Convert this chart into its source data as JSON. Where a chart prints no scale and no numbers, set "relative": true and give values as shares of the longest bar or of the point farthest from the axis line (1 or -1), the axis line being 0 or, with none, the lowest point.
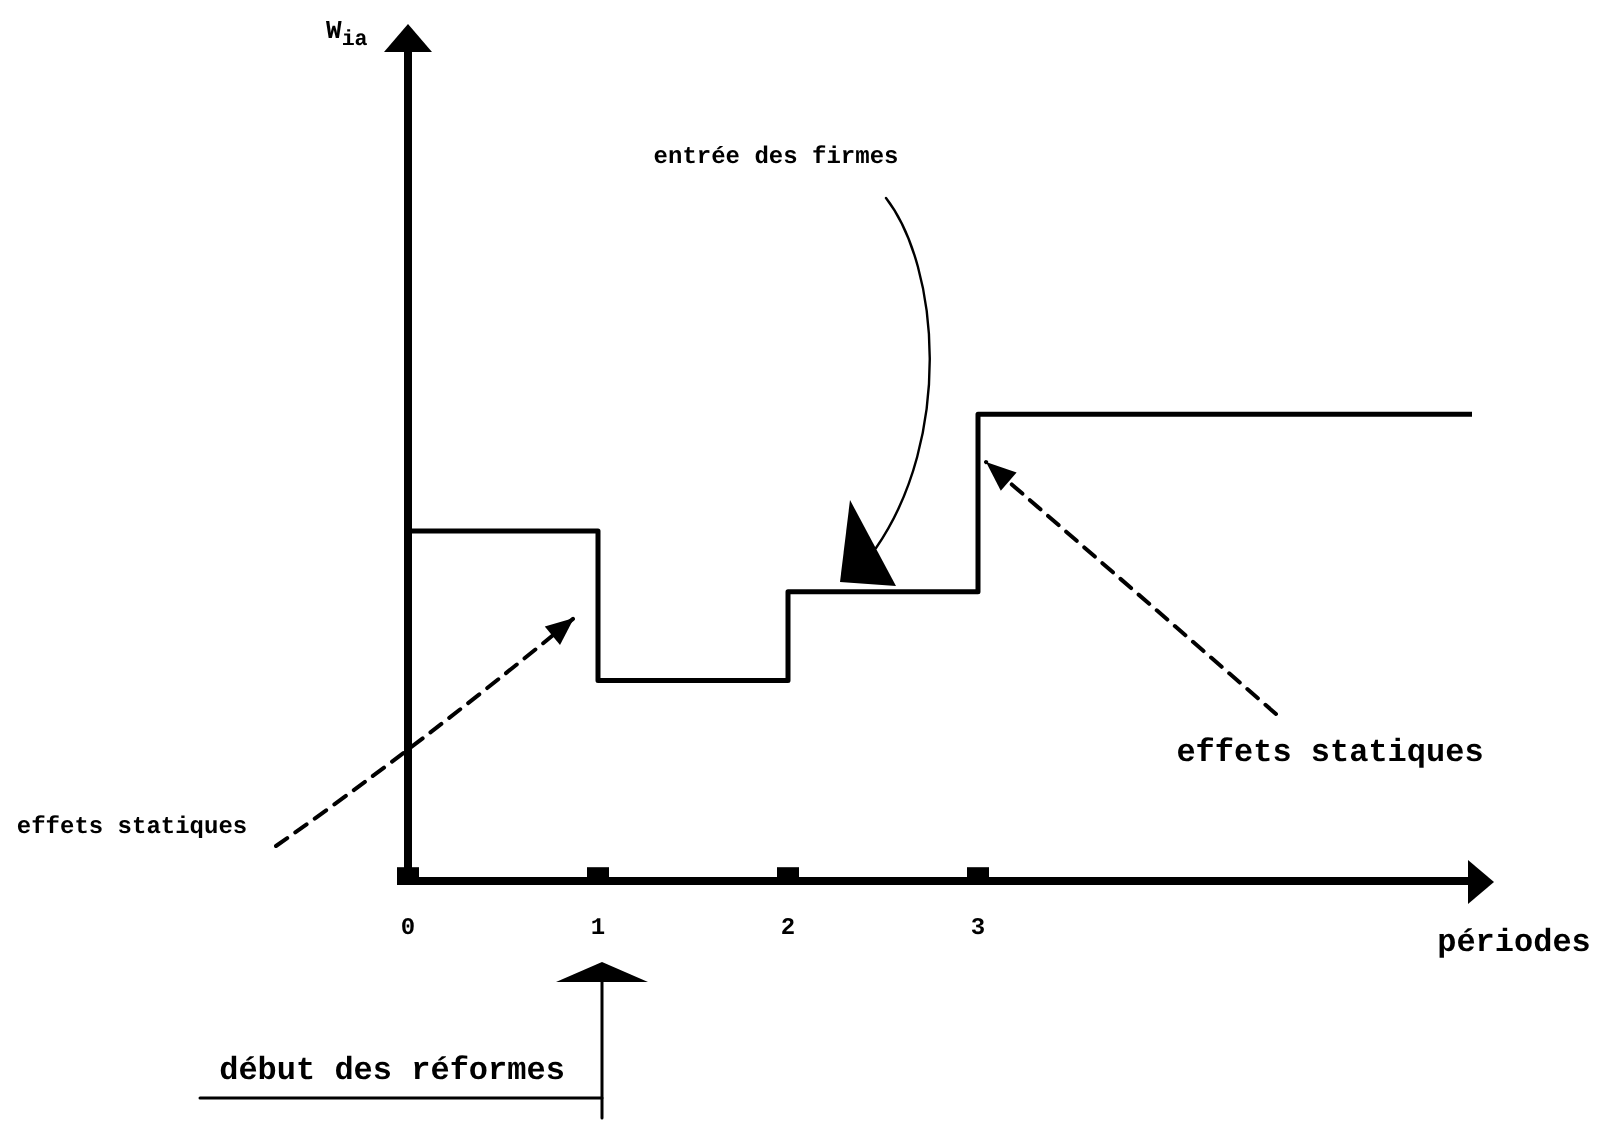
{
  "chart_data": {
    "type": "step",
    "xlabel": "périodes",
    "x": [
      0,
      1,
      2,
      3,
      5.6
    ],
    "values": [
      0.75,
      0.43,
      0.62,
      1,
      1
    ],
    "color": "#000000",
    "relative": true,
    "xlim": [
      0,
      5.6
    ],
    "xticks": [
      0,
      1,
      2,
      3
    ],
    "annotations": [
      "W$_{ia}$",
      "entrée des firmes",
      "effets statiques",
      "effets statiques",
      "début des réformes"
    ]
  }
}
